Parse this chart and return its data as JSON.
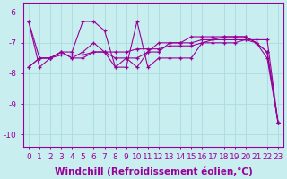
{
  "background_color": "#c8eef0",
  "line_color": "#990099",
  "xlabel": "Windchill (Refroidissement éolien,°C)",
  "xlim": [
    -0.5,
    23.5
  ],
  "ylim": [
    -10.4,
    -5.7
  ],
  "yticks": [
    -10,
    -9,
    -8,
    -7,
    -6
  ],
  "xticks": [
    0,
    1,
    2,
    3,
    4,
    5,
    6,
    7,
    8,
    9,
    10,
    11,
    12,
    13,
    14,
    15,
    16,
    17,
    18,
    19,
    20,
    21,
    22,
    23
  ],
  "x": [
    0,
    1,
    2,
    3,
    4,
    5,
    6,
    7,
    8,
    9,
    10,
    11,
    12,
    13,
    14,
    15,
    16,
    17,
    18,
    19,
    20,
    21,
    22,
    23
  ],
  "series1": [
    -6.3,
    -7.8,
    -7.5,
    -7.3,
    -7.3,
    -6.3,
    -6.3,
    -6.6,
    -7.8,
    -7.8,
    -6.3,
    -7.8,
    -7.5,
    -7.5,
    -7.5,
    -7.5,
    -7.0,
    -6.9,
    -6.8,
    -6.8,
    -6.8,
    -7.0,
    -7.5,
    -9.6
  ],
  "series2": [
    -7.8,
    -7.5,
    -7.5,
    -7.3,
    -7.5,
    -7.5,
    -7.3,
    -7.3,
    -7.8,
    -7.5,
    -7.8,
    -7.3,
    -7.3,
    -7.0,
    -7.0,
    -7.0,
    -6.9,
    -6.9,
    -6.9,
    -6.9,
    -6.9,
    -7.0,
    -7.3,
    -9.6
  ],
  "series3": [
    -7.8,
    -7.5,
    -7.5,
    -7.3,
    -7.5,
    -7.3,
    -7.0,
    -7.3,
    -7.5,
    -7.5,
    -7.5,
    -7.3,
    -7.0,
    -7.0,
    -7.0,
    -6.8,
    -6.8,
    -6.8,
    -6.8,
    -6.8,
    -6.8,
    -7.0,
    -7.3,
    -9.6
  ],
  "series4": [
    -6.3,
    -7.5,
    -7.5,
    -7.4,
    -7.4,
    -7.4,
    -7.3,
    -7.3,
    -7.3,
    -7.3,
    -7.2,
    -7.2,
    -7.2,
    -7.1,
    -7.1,
    -7.1,
    -7.0,
    -7.0,
    -7.0,
    -7.0,
    -6.9,
    -6.9,
    -6.9,
    -9.6
  ],
  "grid_color": "#a8dde0",
  "tick_fontsize": 6.5,
  "xlabel_fontsize": 7.5
}
